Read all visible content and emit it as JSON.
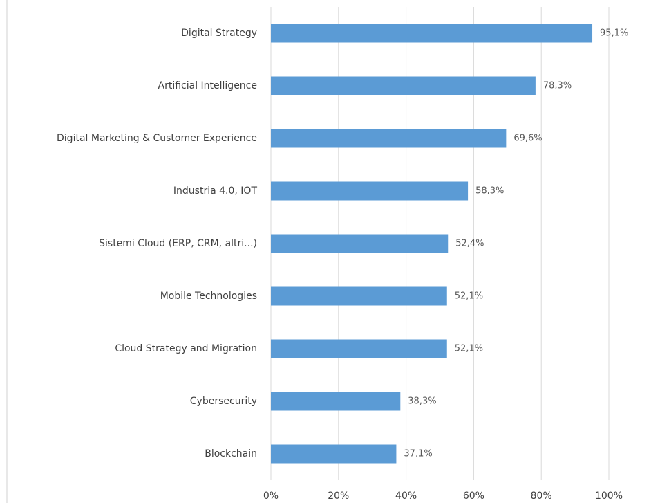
{
  "chart_data": {
    "type": "bar",
    "orientation": "horizontal",
    "categories": [
      "Digital Strategy",
      "Artificial Intelligence",
      "Digital Marketing & Customer Experience",
      "Industria 4.0, IOT",
      "Sistemi Cloud (ERP, CRM, altri...)",
      "Mobile Technologies",
      "Cloud Strategy and Migration",
      "Cybersecurity",
      "Blockchain"
    ],
    "values": [
      95.1,
      78.3,
      69.6,
      58.3,
      52.4,
      52.1,
      52.1,
      38.3,
      37.1
    ],
    "value_labels": [
      "95,1%",
      "78,3%",
      "69,6%",
      "58,3%",
      "52,4%",
      "52,1%",
      "52,1%",
      "38,3%",
      "37,1%"
    ],
    "color": "#5b9bd5",
    "xlim": [
      0,
      100
    ],
    "xticks": [
      {
        "value": 0,
        "label": "0%"
      },
      {
        "value": 20,
        "label": "20%"
      },
      {
        "value": 40,
        "label": "40%"
      },
      {
        "value": 60,
        "label": "60%"
      },
      {
        "value": 80,
        "label": "80%"
      },
      {
        "value": 100,
        "label": "100%"
      }
    ],
    "grid": true
  }
}
